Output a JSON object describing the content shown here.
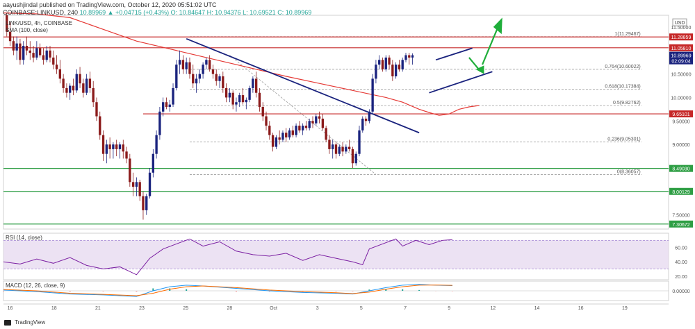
{
  "header": {
    "published": "aayushjindal published on TradingView.com, October 12, 2020 05:51:02 UTC",
    "symbol": "COINBASE:LINKUSD, 240",
    "ohlc": "10.89969 ▲ +0.04715 (+0.43%)  O: 10.84647  H: 10.94376  L: 10.69521  C: 10.89969"
  },
  "legend": {
    "pair": "LINK/USD, 4h, COINBASE",
    "sma": "SMA (100, close)"
  },
  "footer": {
    "brand": "TradingView"
  },
  "colors": {
    "up": "#26a69a",
    "down": "#ef5350",
    "candle_up": "#1a237e",
    "candle_down": "#8b1a1a",
    "sma": "#e53935",
    "trend": "#1a237e",
    "support": "#2e9e44",
    "resistance": "#c62828",
    "fib": "#9e9e9e",
    "arrow": "#1fae3a",
    "rsi": "#7b1fa2",
    "rsi_band": "#e7dbf0",
    "macd": "#2196f3",
    "signal": "#ff6d00"
  },
  "chart_data": [
    {
      "type": "candlestick",
      "title": "LINK/USD, 4h, COINBASE",
      "x_tick_labels": [
        "16",
        "18",
        "21",
        "23",
        "25",
        "28",
        "Oct",
        "3",
        "5",
        "7",
        "9",
        "12",
        "14",
        "16",
        "19"
      ],
      "y_tick_labels": [
        "11.50000",
        "10.50000",
        "10.00000",
        "9.50000",
        "9.00000",
        "7.50000"
      ],
      "ylim": [
        7.2,
        11.75
      ],
      "x_range_bars": [
        0,
        200
      ],
      "candles_ohlc": [
        [
          11.75,
          11.8,
          11.3,
          11.4
        ],
        [
          11.4,
          11.6,
          11.1,
          11.2
        ],
        [
          11.2,
          11.3,
          10.9,
          11.0
        ],
        [
          11.0,
          11.3,
          10.8,
          11.15
        ],
        [
          11.15,
          11.25,
          10.7,
          10.8
        ],
        [
          10.8,
          11.2,
          10.7,
          11.1
        ],
        [
          11.1,
          11.3,
          10.9,
          11.0
        ],
        [
          11.0,
          11.2,
          10.8,
          10.95
        ],
        [
          10.95,
          11.1,
          10.75,
          10.85
        ],
        [
          10.85,
          11.2,
          10.8,
          11.05
        ],
        [
          11.05,
          11.15,
          10.85,
          10.9
        ],
        [
          10.9,
          11.05,
          10.7,
          10.8
        ],
        [
          10.8,
          11.1,
          10.75,
          11.0
        ],
        [
          11.0,
          11.1,
          10.75,
          10.85
        ],
        [
          10.85,
          11.0,
          10.6,
          10.7
        ],
        [
          10.7,
          10.9,
          10.5,
          10.6
        ],
        [
          10.6,
          10.8,
          10.3,
          10.4
        ],
        [
          10.4,
          10.5,
          10.1,
          10.2
        ],
        [
          10.2,
          10.3,
          10.0,
          10.1
        ],
        [
          10.1,
          10.3,
          9.95,
          10.25
        ],
        [
          10.25,
          10.4,
          10.05,
          10.15
        ],
        [
          10.15,
          10.6,
          10.1,
          10.5
        ],
        [
          10.5,
          10.65,
          10.2,
          10.3
        ],
        [
          10.3,
          10.4,
          10.0,
          10.1
        ],
        [
          10.1,
          10.5,
          10.05,
          10.4
        ],
        [
          10.4,
          10.55,
          10.1,
          10.2
        ],
        [
          10.2,
          10.35,
          9.8,
          9.9
        ],
        [
          9.9,
          10.0,
          9.5,
          9.6
        ],
        [
          9.6,
          9.7,
          9.1,
          9.2
        ],
        [
          9.2,
          9.3,
          8.65,
          8.8
        ],
        [
          8.8,
          9.1,
          8.6,
          9.0
        ],
        [
          9.0,
          9.15,
          8.7,
          8.9
        ],
        [
          8.9,
          9.05,
          8.7,
          9.0
        ],
        [
          9.0,
          9.1,
          8.75,
          8.9
        ],
        [
          8.9,
          9.05,
          8.7,
          9.0
        ],
        [
          9.0,
          9.1,
          8.7,
          8.85
        ],
        [
          8.85,
          8.95,
          8.6,
          8.7
        ],
        [
          8.7,
          8.8,
          8.1,
          8.2
        ],
        [
          8.2,
          8.4,
          7.9,
          8.1
        ],
        [
          8.1,
          8.3,
          7.9,
          8.2
        ],
        [
          8.2,
          8.25,
          7.8,
          7.9
        ],
        [
          7.9,
          8.0,
          7.4,
          7.6
        ],
        [
          7.6,
          7.95,
          7.5,
          7.9
        ],
        [
          7.9,
          8.5,
          7.85,
          8.4
        ],
        [
          8.4,
          8.9,
          8.3,
          8.8
        ],
        [
          8.8,
          9.3,
          8.7,
          9.2
        ],
        [
          9.2,
          9.8,
          9.1,
          9.7
        ],
        [
          9.7,
          10.0,
          9.6,
          9.9
        ],
        [
          9.9,
          10.0,
          9.75,
          9.8
        ],
        [
          9.8,
          9.95,
          9.7,
          9.85
        ],
        [
          9.85,
          10.3,
          9.8,
          10.2
        ],
        [
          10.2,
          10.8,
          10.15,
          10.7
        ],
        [
          10.7,
          11.0,
          10.5,
          10.8
        ],
        [
          10.8,
          10.9,
          10.5,
          10.6
        ],
        [
          10.6,
          10.85,
          10.5,
          10.75
        ],
        [
          10.75,
          10.85,
          10.4,
          10.5
        ],
        [
          10.5,
          10.7,
          10.2,
          10.3
        ],
        [
          10.3,
          10.5,
          10.1,
          10.4
        ],
        [
          10.4,
          10.6,
          10.3,
          10.5
        ],
        [
          10.5,
          10.75,
          10.4,
          10.7
        ],
        [
          10.7,
          10.85,
          10.6,
          10.8
        ],
        [
          10.8,
          10.9,
          10.55,
          10.6
        ],
        [
          10.6,
          10.7,
          10.4,
          10.5
        ],
        [
          10.5,
          10.6,
          10.25,
          10.35
        ],
        [
          10.35,
          10.5,
          10.2,
          10.45
        ],
        [
          10.45,
          10.55,
          10.1,
          10.2
        ],
        [
          10.2,
          10.3,
          9.9,
          10.0
        ],
        [
          10.0,
          10.2,
          9.9,
          10.1
        ],
        [
          10.1,
          10.15,
          9.75,
          9.85
        ],
        [
          9.85,
          10.0,
          9.7,
          9.9
        ],
        [
          9.9,
          10.1,
          9.8,
          10.05
        ],
        [
          10.05,
          10.2,
          9.85,
          9.9
        ],
        [
          9.9,
          10.0,
          9.75,
          9.95
        ],
        [
          9.95,
          10.25,
          9.9,
          10.2
        ],
        [
          10.2,
          10.45,
          10.1,
          10.4
        ],
        [
          10.4,
          10.55,
          10.0,
          10.1
        ],
        [
          10.1,
          10.2,
          9.7,
          9.8
        ],
        [
          9.8,
          9.9,
          9.5,
          9.6
        ],
        [
          9.6,
          9.7,
          9.3,
          9.4
        ],
        [
          9.4,
          9.5,
          9.1,
          9.2
        ],
        [
          9.2,
          9.25,
          8.85,
          8.95
        ],
        [
          8.95,
          9.2,
          8.9,
          9.15
        ],
        [
          9.15,
          9.3,
          9.0,
          9.1
        ],
        [
          9.1,
          9.3,
          9.05,
          9.25
        ],
        [
          9.25,
          9.35,
          9.05,
          9.15
        ],
        [
          9.15,
          9.35,
          9.1,
          9.3
        ],
        [
          9.3,
          9.4,
          9.15,
          9.2
        ],
        [
          9.2,
          9.45,
          9.15,
          9.4
        ],
        [
          9.4,
          9.5,
          9.25,
          9.3
        ],
        [
          9.3,
          9.45,
          9.2,
          9.4
        ],
        [
          9.4,
          9.5,
          9.3,
          9.35
        ],
        [
          9.35,
          9.55,
          9.3,
          9.5
        ],
        [
          9.5,
          9.6,
          9.35,
          9.45
        ],
        [
          9.45,
          9.65,
          9.4,
          9.6
        ],
        [
          9.6,
          9.7,
          9.45,
          9.55
        ],
        [
          9.55,
          9.65,
          9.3,
          9.35
        ],
        [
          9.35,
          9.4,
          9.05,
          9.1
        ],
        [
          9.1,
          9.2,
          8.8,
          8.9
        ],
        [
          8.9,
          9.1,
          8.7,
          9.0
        ],
        [
          9.0,
          9.05,
          8.7,
          8.8
        ],
        [
          8.8,
          9.0,
          8.75,
          8.95
        ],
        [
          8.95,
          9.05,
          8.75,
          8.85
        ],
        [
          8.85,
          9.0,
          8.8,
          8.95
        ],
        [
          8.95,
          9.1,
          8.85,
          8.9
        ],
        [
          8.9,
          8.95,
          8.5,
          8.6
        ],
        [
          8.6,
          8.85,
          8.55,
          8.8
        ],
        [
          8.8,
          9.4,
          8.75,
          9.3
        ],
        [
          9.3,
          9.6,
          9.25,
          9.55
        ],
        [
          9.55,
          9.6,
          9.4,
          9.5
        ],
        [
          9.5,
          9.75,
          9.45,
          9.7
        ],
        [
          9.7,
          10.5,
          9.65,
          10.4
        ],
        [
          10.4,
          10.8,
          10.3,
          10.7
        ],
        [
          10.7,
          10.9,
          10.6,
          10.8
        ],
        [
          10.8,
          10.85,
          10.55,
          10.6
        ],
        [
          10.6,
          10.9,
          10.55,
          10.85
        ],
        [
          10.85,
          10.9,
          10.6,
          10.7
        ],
        [
          10.7,
          10.8,
          10.35,
          10.45
        ],
        [
          10.45,
          10.75,
          10.4,
          10.7
        ],
        [
          10.7,
          10.8,
          10.55,
          10.6
        ],
        [
          10.6,
          10.85,
          10.55,
          10.8
        ],
        [
          10.8,
          10.95,
          10.75,
          10.9
        ],
        [
          10.9,
          10.95,
          10.7,
          10.85
        ],
        [
          10.85,
          10.94,
          10.7,
          10.9
        ]
      ],
      "sma_100": [
        [
          0,
          11.8
        ],
        [
          10,
          11.78
        ],
        [
          20,
          11.7
        ],
        [
          30,
          11.45
        ],
        [
          40,
          11.2
        ],
        [
          55,
          10.95
        ],
        [
          70,
          10.7
        ],
        [
          85,
          10.45
        ],
        [
          95,
          10.3
        ],
        [
          105,
          10.15
        ],
        [
          115,
          10.0
        ],
        [
          120,
          9.9
        ],
        [
          125,
          9.75
        ],
        [
          128,
          9.68
        ],
        [
          131,
          9.62
        ],
        [
          134,
          9.65
        ],
        [
          137,
          9.75
        ],
        [
          140,
          9.8
        ],
        [
          143,
          9.83
        ]
      ],
      "price_levels": {
        "resistance": [
          11.28859,
          11.0581,
          9.65101
        ],
        "support": [
          8.4903,
          8.00129,
          7.30672
        ],
        "current": 10.89969
      },
      "fibonacci": [
        {
          "label": "1(11.29467)",
          "value": 11.29467
        },
        {
          "label": "0.764(10.60022)",
          "value": 10.60022
        },
        {
          "label": "0.618(10.17384)",
          "value": 10.17384
        },
        {
          "label": "0.5(9.82762)",
          "value": 9.82762
        },
        {
          "label": "0.236(9.05301)",
          "value": 9.05301
        },
        {
          "label": "0(8.36057)",
          "value": 8.36057
        }
      ],
      "trendlines": [
        {
          "role": "bearish trend line",
          "from": [
            55,
            11.25
          ],
          "to": [
            125,
            9.25
          ]
        },
        {
          "role": "channel upper",
          "from": [
            130,
            10.8
          ],
          "to": [
            141,
            11.05
          ]
        },
        {
          "role": "channel lower",
          "from": [
            128,
            10.1
          ],
          "to": [
            147,
            10.55
          ]
        }
      ],
      "price_tags": [
        {
          "text": "USD",
          "value": 11.6
        },
        {
          "text": "11.28859",
          "value": 11.28859,
          "color": "#c62828"
        },
        {
          "text": "11.05810",
          "value": 11.0581,
          "color": "#c62828"
        },
        {
          "text": "10.89969",
          "value": 10.89969,
          "color": "#1a237e"
        },
        {
          "text": "02:09:04",
          "value": 10.78,
          "color": "#1a237e"
        },
        {
          "text": "9.65101",
          "value": 9.65101,
          "color": "#c62828"
        },
        {
          "text": "8.49030",
          "value": 8.4903,
          "color": "#2e9e44"
        },
        {
          "text": "8.00129",
          "value": 8.00129,
          "color": "#2e9e44"
        },
        {
          "text": "7.30672",
          "value": 7.30672,
          "color": "#2e9e44"
        }
      ]
    },
    {
      "type": "line",
      "title": "RSI (14, close)",
      "y_tick_labels": [
        "60.00",
        "40.00",
        "20.00"
      ],
      "ylim": [
        15,
        80
      ],
      "band": [
        30,
        70
      ],
      "values": [
        [
          0,
          40
        ],
        [
          5,
          37
        ],
        [
          10,
          44
        ],
        [
          15,
          38
        ],
        [
          20,
          46
        ],
        [
          25,
          35
        ],
        [
          30,
          30
        ],
        [
          35,
          33
        ],
        [
          40,
          22
        ],
        [
          44,
          45
        ],
        [
          48,
          58
        ],
        [
          52,
          65
        ],
        [
          56,
          72
        ],
        [
          60,
          62
        ],
        [
          65,
          68
        ],
        [
          70,
          55
        ],
        [
          75,
          50
        ],
        [
          80,
          48
        ],
        [
          85,
          52
        ],
        [
          90,
          42
        ],
        [
          95,
          50
        ],
        [
          100,
          45
        ],
        [
          105,
          40
        ],
        [
          108,
          36
        ],
        [
          110,
          58
        ],
        [
          114,
          65
        ],
        [
          118,
          72
        ],
        [
          120,
          62
        ],
        [
          124,
          70
        ],
        [
          128,
          64
        ],
        [
          132,
          70
        ],
        [
          135,
          71
        ]
      ]
    },
    {
      "type": "line",
      "title": "MACD (12, 26, close, 9)",
      "y_tick_labels": [
        "0.00000"
      ],
      "ylim": [
        -0.6,
        0.6
      ],
      "macd": [
        [
          0,
          0.05
        ],
        [
          10,
          -0.05
        ],
        [
          20,
          -0.2
        ],
        [
          30,
          -0.25
        ],
        [
          40,
          -0.35
        ],
        [
          45,
          0.0
        ],
        [
          50,
          0.25
        ],
        [
          55,
          0.35
        ],
        [
          60,
          0.3
        ],
        [
          70,
          0.15
        ],
        [
          80,
          0.0
        ],
        [
          90,
          -0.1
        ],
        [
          100,
          -0.15
        ],
        [
          105,
          -0.2
        ],
        [
          110,
          0.0
        ],
        [
          115,
          0.2
        ],
        [
          120,
          0.35
        ],
        [
          125,
          0.4
        ],
        [
          130,
          0.35
        ],
        [
          135,
          0.32
        ]
      ],
      "signal": [
        [
          0,
          0.08
        ],
        [
          10,
          0.0
        ],
        [
          20,
          -0.15
        ],
        [
          30,
          -0.22
        ],
        [
          40,
          -0.3
        ],
        [
          45,
          -0.15
        ],
        [
          50,
          0.1
        ],
        [
          55,
          0.25
        ],
        [
          60,
          0.3
        ],
        [
          70,
          0.2
        ],
        [
          80,
          0.05
        ],
        [
          90,
          -0.05
        ],
        [
          100,
          -0.12
        ],
        [
          105,
          -0.17
        ],
        [
          110,
          -0.08
        ],
        [
          115,
          0.1
        ],
        [
          120,
          0.25
        ],
        [
          125,
          0.35
        ],
        [
          130,
          0.36
        ],
        [
          135,
          0.34
        ]
      ]
    }
  ]
}
